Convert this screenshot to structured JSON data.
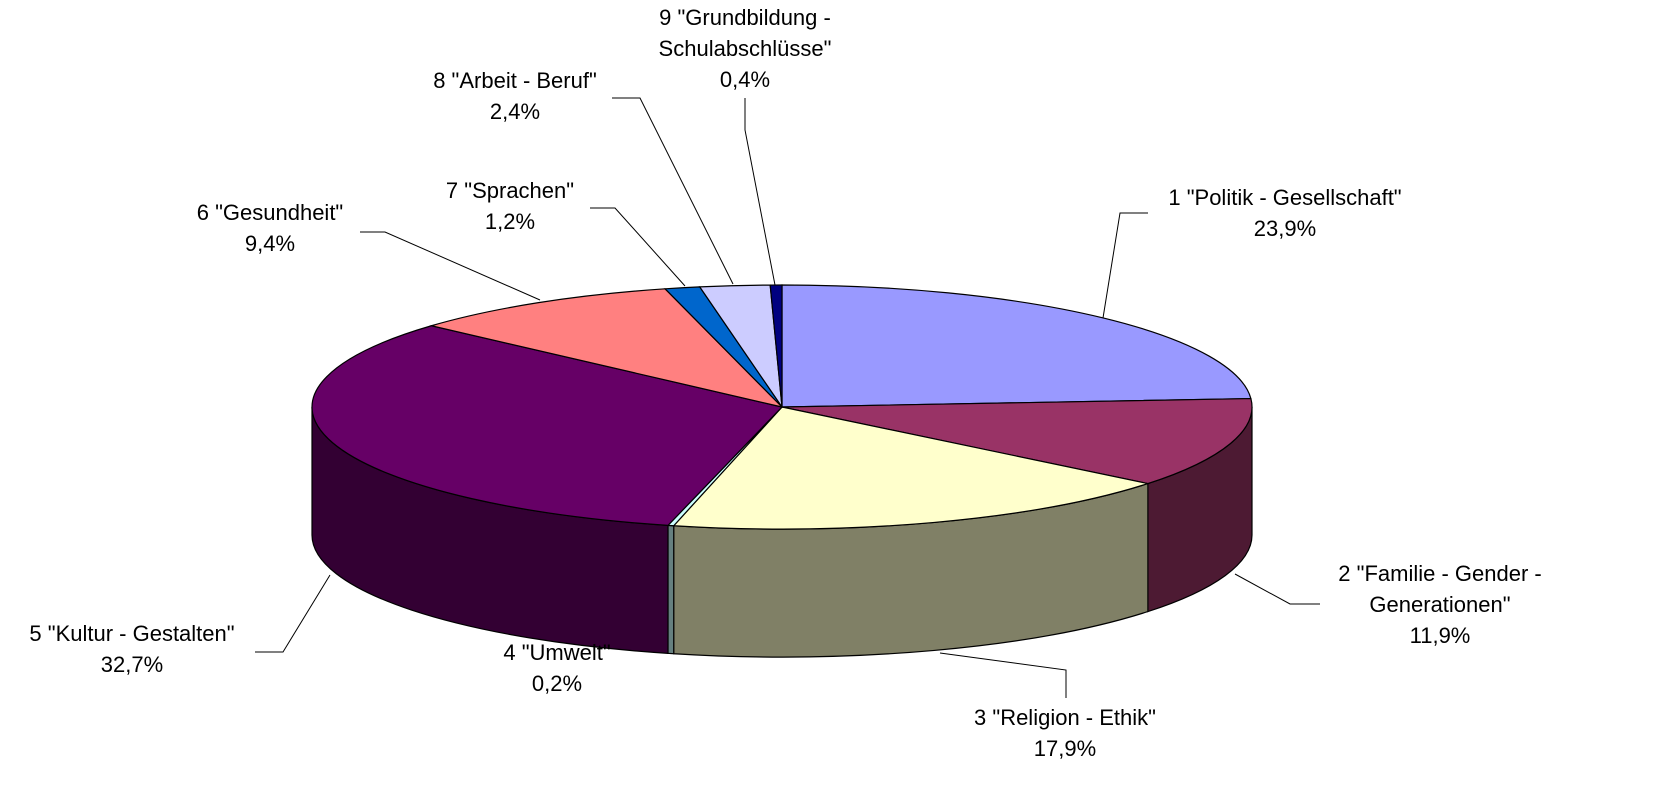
{
  "chart_data": {
    "type": "pie3d",
    "categories": [
      "1 \"Politik - Gesellschaft\"",
      "2 \"Familie - Gender - Generationen\"",
      "3 \"Religion - Ethik\"",
      "4 \"Umwelt\"",
      "5 \"Kultur - Gestalten\"",
      "6 \"Gesundheit\"",
      "7 \"Sprachen\"",
      "8 \"Arbeit - Beruf\"",
      "9 \"Grundbildung - Schulabschlüsse\""
    ],
    "values": [
      23.9,
      11.9,
      17.9,
      0.2,
      32.7,
      9.4,
      1.2,
      2.4,
      0.4
    ],
    "value_labels": [
      "23,9%",
      "11,9%",
      "17,9%",
      "0,2%",
      "32,7%",
      "9,4%",
      "1,2%",
      "2,4%",
      "0,4%"
    ],
    "colors": [
      "#9999ff",
      "#993366",
      "#ffffcc",
      "#ccffff",
      "#660066",
      "#ff8080",
      "#0066cc",
      "#ccccff",
      "#000080"
    ]
  }
}
